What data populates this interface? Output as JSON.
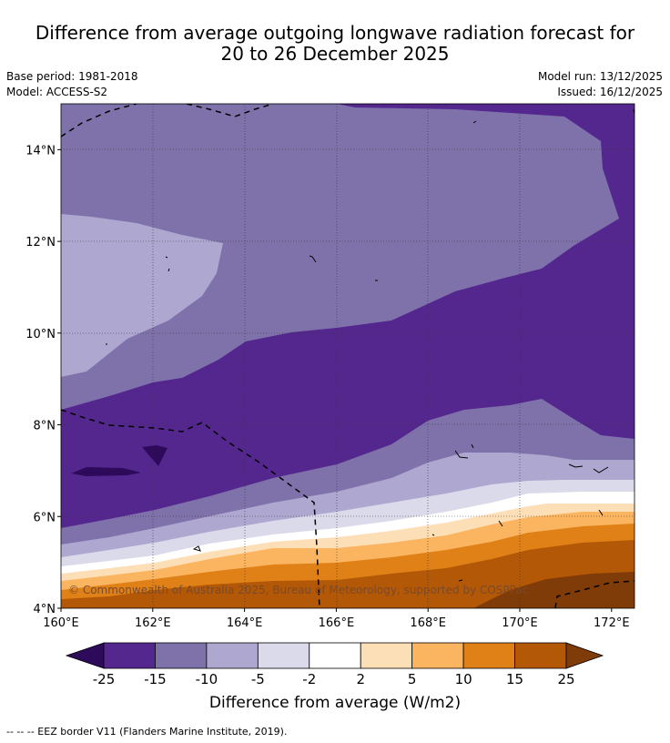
{
  "header": {
    "title_line1": "Difference from average outgoing longwave radiation forecast for",
    "title_line2": "20 to 26 December 2025",
    "base_period": "Base period: 1981-2018",
    "model": "Model: ACCESS-S2",
    "model_run": "Model run: 13/12/2025",
    "issued": "Issued: 16/12/2025"
  },
  "map": {
    "copyright": "© Commonwealth of Australia 2025, Bureau of Meteorology, supported by COSPPac",
    "lat_labels": [
      "14°N",
      "12°N",
      "10°N",
      "8°N",
      "6°N",
      "4°N"
    ],
    "lon_labels": [
      "160°E",
      "162°E",
      "164°E",
      "166°E",
      "168°E",
      "170°E",
      "172°E"
    ],
    "lat_range": [
      4,
      15
    ],
    "lon_range": [
      160,
      172.5
    ]
  },
  "colorbar": {
    "title": "Difference from average (W/m2)",
    "labels": [
      "-25",
      "-15",
      "-10",
      "-5",
      "-2",
      "2",
      "5",
      "10",
      "15",
      "25"
    ],
    "colors": [
      "#2d0a5a",
      "#54278f",
      "#7f72ab",
      "#aea8d0",
      "#dadaeb",
      "#ffffff",
      "#fddfb7",
      "#fbb45f",
      "#e08117",
      "#b35806",
      "#7f3b08"
    ]
  },
  "legend": {
    "eez_note": "--  --  -- EEZ border V11 (Flanders Marine Institute, 2019)."
  }
}
